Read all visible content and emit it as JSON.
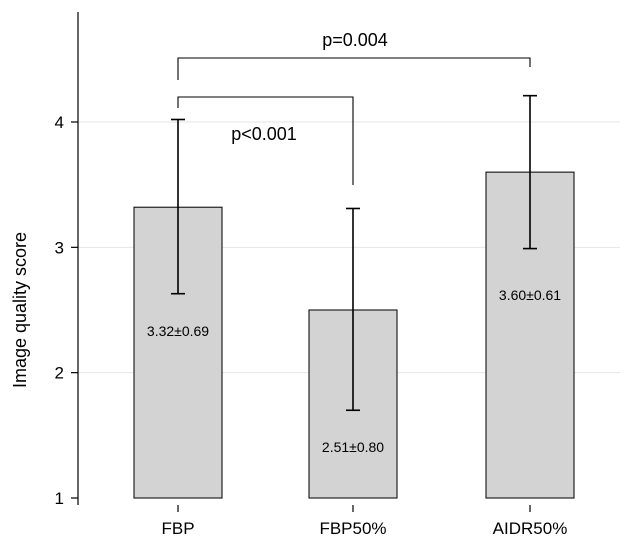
{
  "chart_data": {
    "type": "bar",
    "ylabel": "Image quality score",
    "ylim": [
      1,
      5
    ],
    "yticks": [
      1,
      2,
      3,
      4
    ],
    "grid": true,
    "categories": [
      "FBP",
      "FBP50%",
      "AIDR50%"
    ],
    "values": [
      3.32,
      2.5,
      3.6
    ],
    "error_lower": [
      2.63,
      1.7,
      2.99
    ],
    "error_upper": [
      4.02,
      3.31,
      4.21
    ],
    "value_labels": [
      "3.32±0.69",
      "2.51±0.80",
      "3.60±0.61"
    ],
    "comparisons": [
      {
        "from": "FBP",
        "to": "AIDR50%",
        "label": "p=0.004"
      },
      {
        "from": "FBP",
        "to": "FBP50%",
        "label": "p<0.001"
      }
    ],
    "colors": {
      "bar_fill": "#d3d3d3",
      "bar_edge": "#111111",
      "grid": "#e6e6e6"
    }
  }
}
